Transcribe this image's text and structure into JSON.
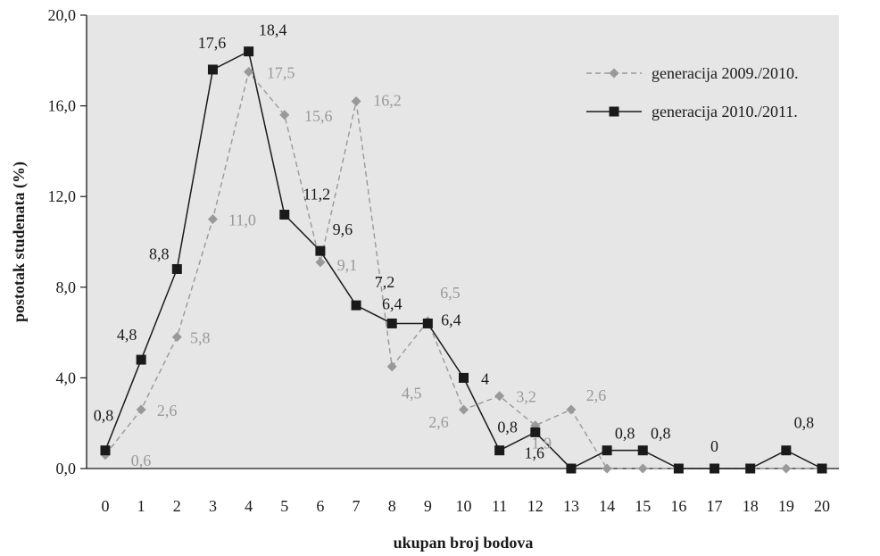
{
  "chart_data": {
    "type": "line",
    "title": "",
    "xlabel": "ukupan broj bodova",
    "ylabel": "postotak studenata (%)",
    "x": [
      0,
      1,
      2,
      3,
      4,
      5,
      6,
      7,
      8,
      9,
      10,
      11,
      12,
      13,
      14,
      15,
      16,
      17,
      18,
      19,
      20
    ],
    "xlim": [
      0,
      20
    ],
    "ylim": [
      0,
      20
    ],
    "y_ticks": [
      0,
      4,
      8,
      12,
      16,
      20
    ],
    "y_tick_labels": [
      "0,0",
      "4,0",
      "8,0",
      "12,0",
      "16,0",
      "20,0"
    ],
    "grid": false,
    "plot_background": "#e6e6e6",
    "legend_position": "top-right",
    "series": [
      {
        "name": "generacija 2009./2010.",
        "color": "#999999",
        "line_style": "dashed",
        "marker": "diamond",
        "values": [
          0.6,
          2.6,
          5.8,
          11.0,
          17.5,
          15.6,
          9.1,
          16.2,
          4.5,
          6.5,
          2.6,
          3.2,
          1.9,
          2.6,
          0,
          0,
          0,
          0,
          0,
          0,
          0
        ],
        "data_labels": [
          "0,6",
          "2,6",
          "5,8",
          "11,0",
          "17,5",
          "15,6",
          "9,1",
          "16,2",
          "4,5",
          "6,5",
          "2,6",
          "3,2",
          "1,9",
          "2,6",
          null,
          null,
          null,
          null,
          null,
          null,
          null
        ]
      },
      {
        "name": "generacija 2010./2011.",
        "color": "#1a1a1a",
        "line_style": "solid",
        "marker": "square",
        "values": [
          0.8,
          4.8,
          8.8,
          17.6,
          18.4,
          11.2,
          9.6,
          7.2,
          6.4,
          6.4,
          4.0,
          0.8,
          1.6,
          0,
          0.8,
          0.8,
          0,
          0,
          0,
          0.8,
          0
        ],
        "data_labels": [
          "0,8",
          "4,8",
          "8,8",
          "17,6",
          "18,4",
          "11,2",
          "9,6",
          "7,2",
          "6,4",
          "6,4",
          "4",
          "0,8",
          "1,6",
          null,
          "0,8",
          "0,8",
          null,
          "0",
          null,
          "0,8",
          null
        ]
      }
    ]
  }
}
